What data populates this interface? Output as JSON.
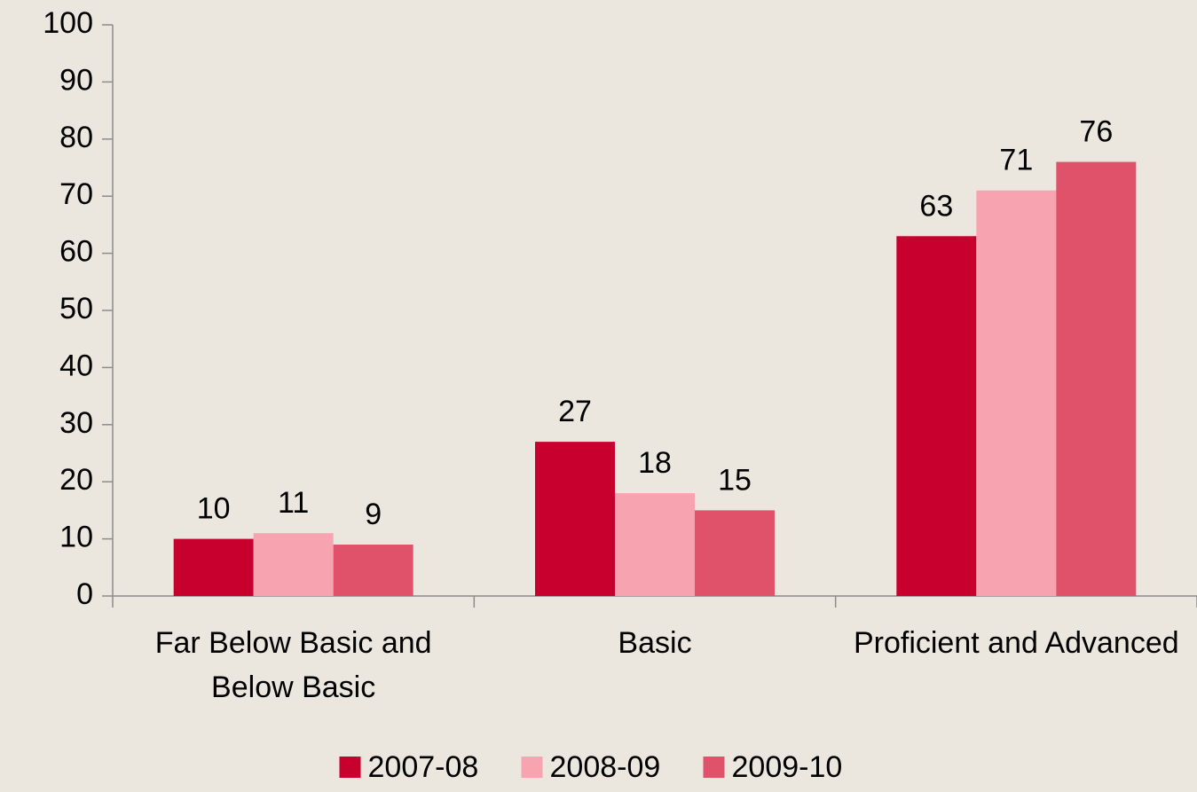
{
  "chart_data": {
    "type": "bar",
    "categories": [
      "Far Below Basic and Below Basic",
      "Basic",
      "Proficient and Advanced"
    ],
    "series": [
      {
        "name": "2007-08",
        "color": "#c8002e",
        "values": [
          10,
          27,
          63
        ]
      },
      {
        "name": "2008-09",
        "color": "#f8a3b0",
        "values": [
          11,
          18,
          71
        ]
      },
      {
        "name": "2009-10",
        "color": "#e0526a",
        "values": [
          9,
          15,
          76
        ]
      }
    ],
    "ylim": [
      0,
      100
    ],
    "yticks": [
      0,
      10,
      20,
      30,
      40,
      50,
      60,
      70,
      80,
      90,
      100
    ],
    "legend": "bottom"
  }
}
